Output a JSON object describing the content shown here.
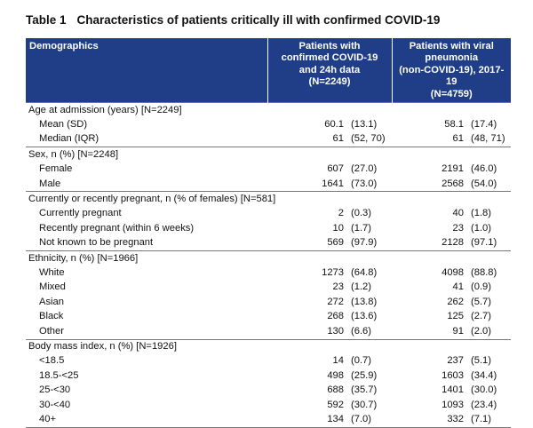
{
  "title": {
    "table_no": "Table 1",
    "text": "Characteristics of patients critically ill with confirmed COVID-19"
  },
  "header": {
    "col0": "Demographics",
    "col1_lines": [
      "Patients with",
      "confirmed COVID-19",
      "and 24h data",
      "(N=2249)"
    ],
    "col2_lines": [
      "Patients with viral",
      "pneumonia",
      "(non-COVID-19), 2017-19",
      "(N=4759)"
    ]
  },
  "groups": [
    {
      "label": "Age at admission (years) [N=2249]",
      "rows": [
        {
          "label": "Mean (SD)",
          "a": "60.1",
          "ap": "(13.1)",
          "b": "58.1",
          "bp": "(17.4)"
        },
        {
          "label": "Median (IQR)",
          "a": "61",
          "ap": "(52, 70)",
          "b": "61",
          "bp": "(48, 71)"
        }
      ]
    },
    {
      "label": "Sex, n (%) [N=2248]",
      "rows": [
        {
          "label": "Female",
          "a": "607",
          "ap": "(27.0)",
          "b": "2191",
          "bp": "(46.0)"
        },
        {
          "label": "Male",
          "a": "1641",
          "ap": "(73.0)",
          "b": "2568",
          "bp": "(54.0)"
        }
      ]
    },
    {
      "label": "Currently or recently pregnant, n (% of females) [N=581]",
      "rows": [
        {
          "label": "Currently pregnant",
          "a": "2",
          "ap": "(0.3)",
          "b": "40",
          "bp": "(1.8)"
        },
        {
          "label": "Recently pregnant (within 6 weeks)",
          "a": "10",
          "ap": "(1.7)",
          "b": "23",
          "bp": "(1.0)"
        },
        {
          "label": "Not known to be pregnant",
          "a": "569",
          "ap": "(97.9)",
          "b": "2128",
          "bp": "(97.1)"
        }
      ]
    },
    {
      "label": "Ethnicity, n (%) [N=1966]",
      "rows": [
        {
          "label": "White",
          "a": "1273",
          "ap": "(64.8)",
          "b": "4098",
          "bp": "(88.8)"
        },
        {
          "label": "Mixed",
          "a": "23",
          "ap": "(1.2)",
          "b": "41",
          "bp": "(0.9)"
        },
        {
          "label": "Asian",
          "a": "272",
          "ap": "(13.8)",
          "b": "262",
          "bp": "(5.7)"
        },
        {
          "label": "Black",
          "a": "268",
          "ap": "(13.6)",
          "b": "125",
          "bp": "(2.7)"
        },
        {
          "label": "Other",
          "a": "130",
          "ap": "(6.6)",
          "b": "91",
          "bp": "(2.0)"
        }
      ]
    },
    {
      "label": "Body mass index, n (%) [N=1926]",
      "rows": [
        {
          "label": "<18.5",
          "a": "14",
          "ap": "(0.7)",
          "b": "237",
          "bp": "(5.1)"
        },
        {
          "label": "18.5-<25",
          "a": "498",
          "ap": "(25.9)",
          "b": "1603",
          "bp": "(34.4)"
        },
        {
          "label": "25-<30",
          "a": "688",
          "ap": "(35.7)",
          "b": "1401",
          "bp": "(30.0)"
        },
        {
          "label": "30-<40",
          "a": "592",
          "ap": "(30.7)",
          "b": "1093",
          "bp": "(23.4)"
        },
        {
          "label": "40+",
          "a": "134",
          "ap": "(7.0)",
          "b": "332",
          "bp": "(7.1)"
        }
      ]
    }
  ],
  "colors": {
    "header_bg": "#1f3e87",
    "header_text": "#ffffff",
    "rule": "#777777"
  }
}
